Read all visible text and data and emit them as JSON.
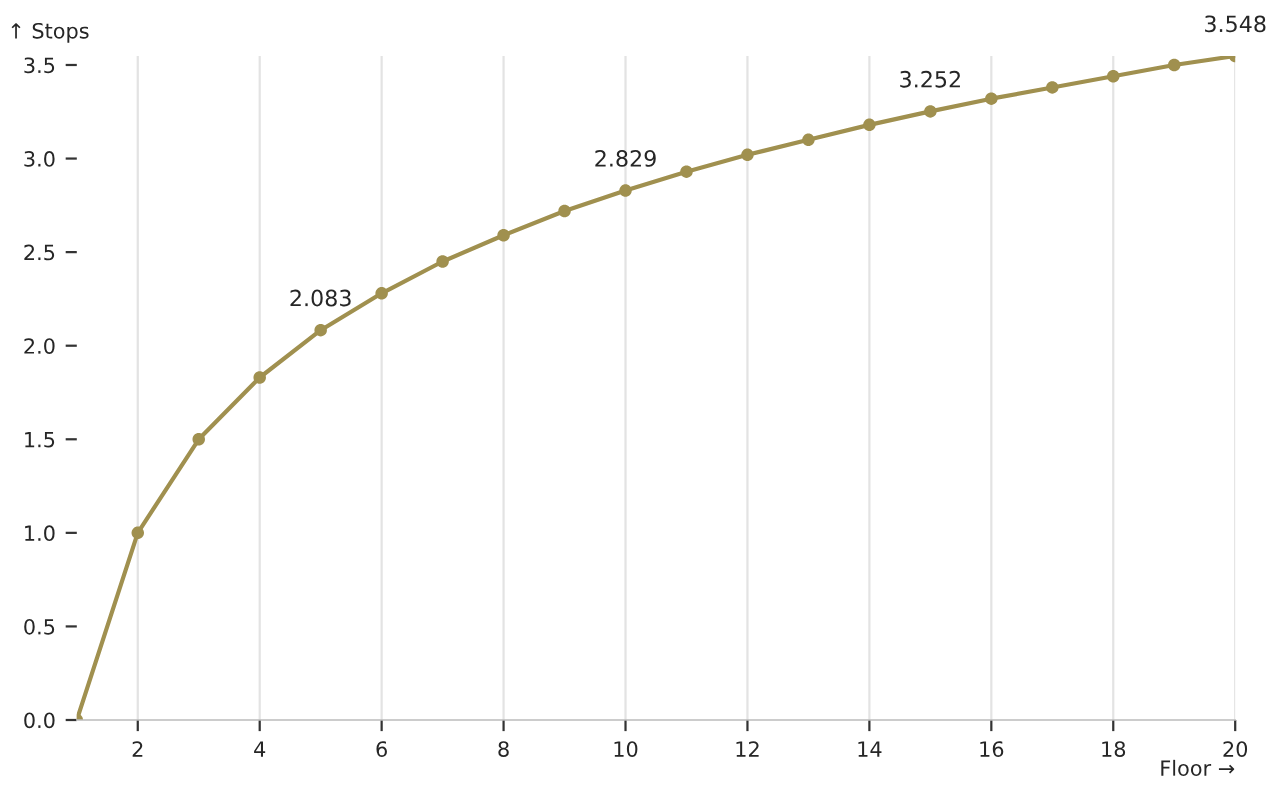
{
  "chart_data": {
    "type": "line",
    "xlabel": "Floor →",
    "ylabel": "↑ Stops",
    "x": [
      1,
      2,
      3,
      4,
      5,
      6,
      7,
      8,
      9,
      10,
      11,
      12,
      13,
      14,
      15,
      16,
      17,
      18,
      19,
      20
    ],
    "series": [
      {
        "color": "#a0904f",
        "values": [
          0,
          1,
          1.5,
          1.83,
          2.083,
          2.28,
          2.45,
          2.59,
          2.72,
          2.829,
          2.93,
          3.02,
          3.1,
          3.18,
          3.252,
          3.32,
          3.38,
          3.44,
          3.5,
          3.548
        ],
        "value_labels": [
          null,
          null,
          null,
          null,
          "2.083",
          null,
          null,
          null,
          null,
          "2.829",
          null,
          null,
          null,
          null,
          "3.252",
          null,
          null,
          null,
          null,
          "3.548"
        ]
      }
    ],
    "xlim": [
      1,
      20
    ],
    "ylim": [
      0,
      3.548
    ],
    "xticks": [
      2,
      4,
      6,
      8,
      10,
      12,
      14,
      16,
      18,
      20
    ],
    "yticks": [
      {
        "value": 0,
        "label": "0.0"
      },
      {
        "value": 0.5,
        "label": "0.5"
      },
      {
        "value": 1,
        "label": "1.0"
      },
      {
        "value": 1.5,
        "label": "1.5"
      },
      {
        "value": 2,
        "label": "2.0"
      },
      {
        "value": 2.5,
        "label": "2.5"
      },
      {
        "value": 3,
        "label": "3.0"
      },
      {
        "value": 3.5,
        "label": "3.5"
      }
    ],
    "grid": "x",
    "marker": "circle",
    "line_style": "solid",
    "legend": false
  }
}
